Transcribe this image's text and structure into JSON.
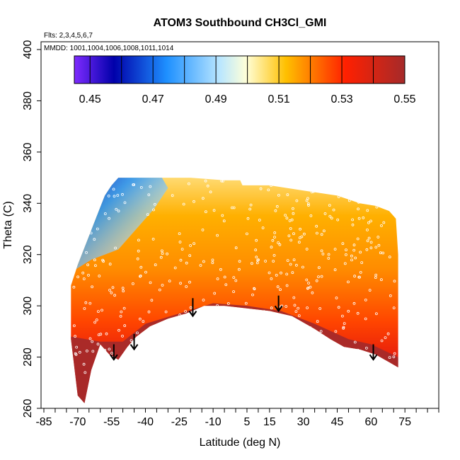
{
  "chart_data": {
    "type": "heatmap",
    "title": "ATOM3 Southbound CH3Cl_GMI",
    "annotations": [
      "Flts: 2,3,4,5,6,7",
      "MMDD: 1001,1004,1006,1008,1011,1014"
    ],
    "xlabel": "Latitude (deg N)",
    "ylabel": "Theta (C)",
    "xlim": [
      -85,
      90
    ],
    "ylim": [
      260,
      400
    ],
    "x_ticks_major": [
      -85,
      -70,
      -55,
      -40,
      -25,
      -10,
      5,
      15,
      30,
      45,
      60,
      75
    ],
    "x_ticks_minor_step": 5,
    "y_ticks": [
      260,
      280,
      300,
      320,
      340,
      360,
      380,
      400
    ],
    "colorbar": {
      "range": [
        0.445,
        0.55
      ],
      "labels": [
        "0.45",
        "0.47",
        "0.49",
        "0.51",
        "0.53",
        "0.55"
      ],
      "label_values": [
        0.45,
        0.47,
        0.49,
        0.51,
        0.53,
        0.55
      ],
      "colors": [
        "#7F2BFF",
        "#0000AA",
        "#1E90FF",
        "#B9E6FF",
        "#FFFFD8",
        "#FFC000",
        "#FF2000",
        "#A52A2A"
      ],
      "stops": [
        0.0,
        0.12,
        0.28,
        0.44,
        0.52,
        0.64,
        0.82,
        1.0
      ]
    },
    "field": {
      "bottom_boundary": [
        [
          -73,
          287
        ],
        [
          -70,
          265
        ],
        [
          -67,
          262
        ],
        [
          -64,
          275
        ],
        [
          -60,
          285
        ],
        [
          -56,
          281
        ],
        [
          -52,
          279
        ],
        [
          -48,
          284
        ],
        [
          -44,
          288
        ],
        [
          -38,
          292
        ],
        [
          -30,
          295
        ],
        [
          -22,
          297
        ],
        [
          -14,
          300
        ],
        [
          -5,
          300
        ],
        [
          5,
          299
        ],
        [
          15,
          298
        ],
        [
          25,
          296
        ],
        [
          35,
          291
        ],
        [
          42,
          287
        ],
        [
          48,
          284
        ],
        [
          55,
          283
        ],
        [
          62,
          281
        ],
        [
          68,
          278
        ],
        [
          72,
          276
        ]
      ],
      "top_boundary": [
        [
          -73,
          308
        ],
        [
          -70,
          316
        ],
        [
          -66,
          325
        ],
        [
          -62,
          334
        ],
        [
          -58,
          343
        ],
        [
          -55,
          347
        ],
        [
          -52,
          350
        ],
        [
          -40,
          350
        ],
        [
          -20,
          350
        ],
        [
          -5,
          349
        ],
        [
          2,
          349
        ],
        [
          3,
          347
        ],
        [
          15,
          347
        ],
        [
          30,
          345
        ],
        [
          45,
          343
        ],
        [
          55,
          340
        ],
        [
          62,
          339
        ],
        [
          68,
          337
        ],
        [
          71,
          334
        ],
        [
          72,
          320
        ],
        [
          72,
          300
        ]
      ],
      "high_value_core": [
        [
          -73,
          288
        ],
        [
          -60,
          286
        ],
        [
          -50,
          286
        ],
        [
          -40,
          293
        ],
        [
          -25,
          297
        ],
        [
          -10,
          301
        ],
        [
          5,
          300
        ],
        [
          20,
          298
        ],
        [
          35,
          293
        ],
        [
          50,
          287
        ],
        [
          60,
          285
        ],
        [
          72,
          280
        ]
      ]
    },
    "arrows": [
      {
        "lat": -54,
        "theta_top": 285,
        "theta_bottom": 279
      },
      {
        "lat": -45,
        "theta_top": 289,
        "theta_bottom": 283
      },
      {
        "lat": -19,
        "theta_top": 303,
        "theta_bottom": 296
      },
      {
        "lat": 19,
        "theta_top": 304,
        "theta_bottom": 298
      },
      {
        "lat": 61,
        "theta_top": 285,
        "theta_bottom": 279
      }
    ]
  }
}
